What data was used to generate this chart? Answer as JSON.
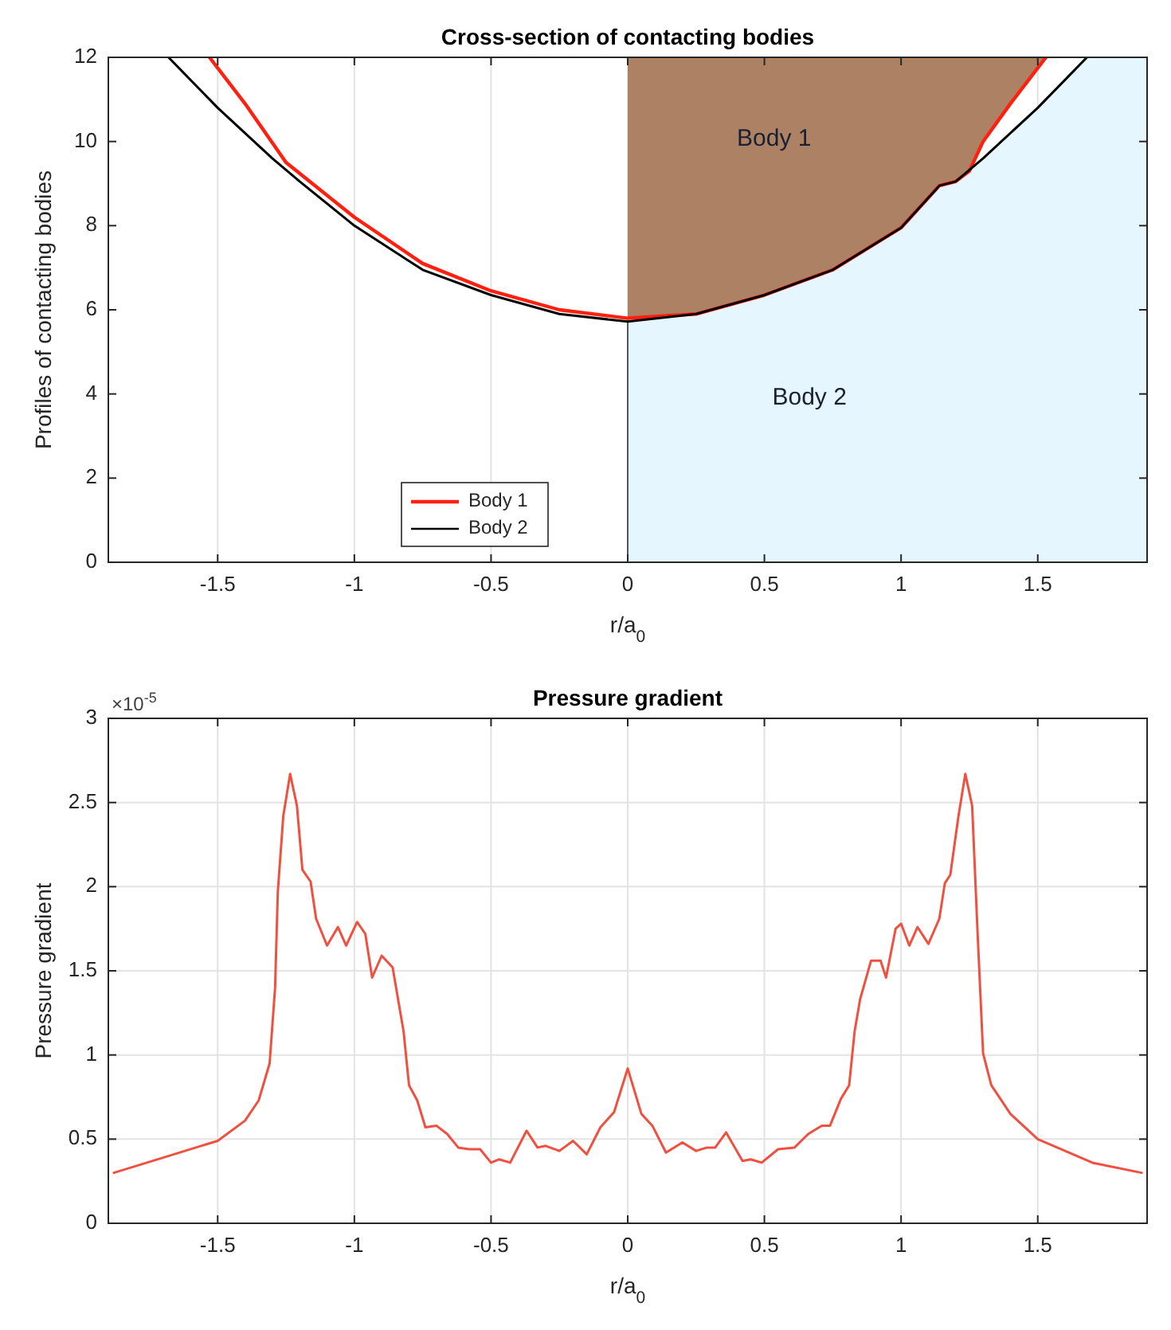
{
  "chart_data": [
    {
      "type": "line",
      "title": "Cross-section of contacting bodies",
      "xlabel": "r/a$_{0}$",
      "ylabel": "Profiles of contacting bodies",
      "xlim": [
        -1.9,
        1.9
      ],
      "ylim": [
        0,
        12
      ],
      "xticks": [
        -1.5,
        -1,
        -0.5,
        0,
        0.5,
        1,
        1.5
      ],
      "yticks": [
        0,
        2,
        4,
        6,
        8,
        10,
        12
      ],
      "grid": "x",
      "legend": "bottom",
      "series": [
        {
          "type": "area",
          "color": "#e6f6ff",
          "x": [
            0,
            0.25,
            0.5,
            0.75,
            1.0,
            1.14,
            1.2,
            1.3,
            1.5,
            1.68,
            1.9
          ],
          "values": [
            5.72,
            5.9,
            6.35,
            6.95,
            7.95,
            8.95,
            9.05,
            9.6,
            10.8,
            12,
            12
          ]
        },
        {
          "name": "Body 1",
          "color": "#ff2010",
          "x": [
            -1.53,
            -1.4,
            -1.25,
            -1.0,
            -0.75,
            -0.5,
            -0.25,
            0,
            0.25,
            0.5,
            0.75,
            1.0,
            1.14,
            1.2,
            1.25,
            1.3,
            1.4,
            1.53
          ],
          "values": [
            12,
            10.9,
            9.5,
            8.2,
            7.1,
            6.45,
            6.0,
            5.8,
            5.9,
            6.35,
            6.95,
            7.95,
            8.95,
            9.05,
            9.3,
            10,
            10.9,
            12
          ]
        },
        {
          "name": "Body 2",
          "color": "#000000",
          "x": [
            -1.68,
            -1.5,
            -1.3,
            -1.2,
            -1.0,
            -0.75,
            -0.5,
            -0.25,
            0,
            0.25,
            0.5,
            0.75,
            1.0,
            1.14,
            1.2,
            1.3,
            1.5,
            1.68
          ],
          "values": [
            12,
            10.8,
            9.6,
            9.05,
            8.0,
            6.95,
            6.35,
            5.9,
            5.72,
            5.9,
            6.35,
            6.95,
            7.95,
            8.95,
            9.05,
            9.6,
            10.8,
            12
          ]
        }
      ],
      "annotations": [
        "Body 1",
        "Body 2"
      ]
    },
    {
      "type": "line",
      "title": "Pressure gradient",
      "xlabel": "r/a$_{0}$",
      "ylabel": "Pressure gradient",
      "xlim": [
        -1.9,
        1.9
      ],
      "ylim": [
        0,
        3
      ],
      "xticks": [
        -1.5,
        -1,
        -0.5,
        0,
        0.5,
        1,
        1.5
      ],
      "yticks": [
        0,
        0.5,
        1,
        1.5,
        2,
        2.5,
        3
      ],
      "grid": true,
      "color": "#f05040",
      "x": [
        -1.88,
        -1.7,
        -1.5,
        -1.4,
        -1.35,
        -1.31,
        -1.29,
        -1.28,
        -1.26,
        -1.235,
        -1.21,
        -1.19,
        -1.16,
        -1.14,
        -1.1,
        -1.06,
        -1.03,
        -0.99,
        -0.96,
        -0.935,
        -0.9,
        -0.86,
        -0.82,
        -0.8,
        -0.77,
        -0.74,
        -0.7,
        -0.66,
        -0.62,
        -0.58,
        -0.54,
        -0.5,
        -0.47,
        -0.43,
        -0.37,
        -0.33,
        -0.3,
        -0.25,
        -0.2,
        -0.15,
        -0.1,
        -0.05,
        0,
        0.05,
        0.09,
        0.14,
        0.2,
        0.25,
        0.29,
        0.32,
        0.36,
        0.42,
        0.45,
        0.49,
        0.55,
        0.61,
        0.66,
        0.71,
        0.74,
        0.78,
        0.81,
        0.83,
        0.85,
        0.89,
        0.925,
        0.945,
        0.98,
        1.0,
        1.03,
        1.06,
        1.1,
        1.14,
        1.16,
        1.18,
        1.21,
        1.235,
        1.26,
        1.28,
        1.3,
        1.33,
        1.4,
        1.5,
        1.7,
        1.88
      ],
      "values": [
        0.3,
        0.39,
        0.49,
        0.61,
        0.73,
        0.95,
        1.4,
        1.97,
        2.42,
        2.67,
        2.48,
        2.1,
        2.03,
        1.81,
        1.65,
        1.76,
        1.65,
        1.79,
        1.72,
        1.46,
        1.59,
        1.52,
        1.14,
        0.82,
        0.73,
        0.57,
        0.58,
        0.53,
        0.45,
        0.44,
        0.44,
        0.36,
        0.38,
        0.36,
        0.55,
        0.45,
        0.46,
        0.43,
        0.49,
        0.41,
        0.57,
        0.66,
        0.92,
        0.65,
        0.58,
        0.42,
        0.48,
        0.43,
        0.45,
        0.45,
        0.54,
        0.37,
        0.38,
        0.36,
        0.44,
        0.45,
        0.53,
        0.58,
        0.58,
        0.74,
        0.82,
        1.14,
        1.33,
        1.56,
        1.56,
        1.46,
        1.75,
        1.78,
        1.65,
        1.76,
        1.66,
        1.81,
        2.02,
        2.07,
        2.42,
        2.67,
        2.48,
        1.72,
        1.01,
        0.82,
        0.65,
        0.5,
        0.36,
        0.3
      ],
      "annotations": [
        "×10$^{-5}$"
      ]
    }
  ]
}
